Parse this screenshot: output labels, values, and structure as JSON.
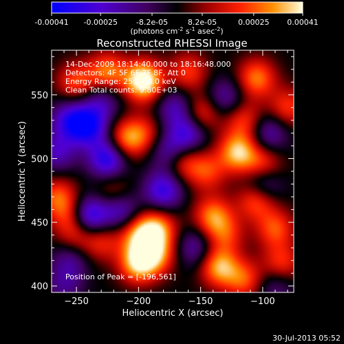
{
  "colorbar": {
    "tick_labels": [
      "-0.00041",
      "-0.00025",
      "-8.2e-05",
      "8.2e-05",
      "0.00025",
      "0.00041"
    ],
    "tick_values": [
      -0.00041,
      -0.00025,
      -8.2e-05,
      8.2e-05,
      0.00025,
      0.00041
    ],
    "range": [
      -0.00041,
      0.00041
    ],
    "unit_main": "(photons cm",
    "unit_exp1": "-2",
    "unit_mid": " s",
    "unit_exp2": "-1",
    "unit_mid2": " asec",
    "unit_exp3": "-2",
    "unit_end": ")"
  },
  "plot": {
    "title": "Reconstructed RHESSI Image",
    "annotation_lines": [
      "14-Dec-2009 18:14:40.000 to 18:16:48.000",
      "Detectors: 4F 5F 6F 7F 8F, Att 0",
      "Energy Range: 25.0-50.0 keV",
      "Clean     Total counts: 9.80E+03"
    ],
    "peak_label": "Position of Peak = [-196,561]",
    "footer": "30-Jul-2013 05:52"
  },
  "chart_data": {
    "type": "heatmap",
    "title": "Reconstructed RHESSI Image",
    "xlabel": "Heliocentric X (arcsec)",
    "ylabel": "Heliocentric Y (arcsec)",
    "xlim": [
      -270,
      -75
    ],
    "ylim": [
      395,
      585
    ],
    "x_ticks": [
      -250,
      -200,
      -150,
      -100
    ],
    "y_ticks": [
      400,
      450,
      500,
      550
    ],
    "x_tick_labels": [
      "−250",
      "−200",
      "−150",
      "−100"
    ],
    "y_tick_labels": [
      "400",
      "450",
      "500",
      "550"
    ],
    "peak_position": [
      -196,
      561
    ],
    "colormap": [
      "#0000ff",
      "#5a00b4",
      "#400060",
      "#000000",
      "#a00000",
      "#ff2000",
      "#ff9000",
      "#ffffa0"
    ],
    "value_range": [
      -0.00041,
      0.00041
    ],
    "sources": [
      {
        "x": -196,
        "y": 561,
        "v": 1.0
      },
      {
        "x": -225,
        "y": 568,
        "v": 0.6
      },
      {
        "x": -250,
        "y": 560,
        "v": 0.5
      },
      {
        "x": -160,
        "y": 568,
        "v": 0.45
      },
      {
        "x": -105,
        "y": 563,
        "v": 0.6
      },
      {
        "x": -80,
        "y": 540,
        "v": 0.45
      },
      {
        "x": -150,
        "y": 535,
        "v": 0.5
      },
      {
        "x": -115,
        "y": 530,
        "v": 0.45
      },
      {
        "x": -210,
        "y": 515,
        "v": 0.6
      },
      {
        "x": -195,
        "y": 520,
        "v": 0.35
      },
      {
        "x": -120,
        "y": 505,
        "v": 0.75
      },
      {
        "x": -100,
        "y": 495,
        "v": 0.5
      },
      {
        "x": -165,
        "y": 498,
        "v": 0.5
      },
      {
        "x": -145,
        "y": 490,
        "v": 0.45
      },
      {
        "x": -265,
        "y": 470,
        "v": 0.5
      },
      {
        "x": -255,
        "y": 455,
        "v": 0.4
      },
      {
        "x": -220,
        "y": 473,
        "v": 0.35
      },
      {
        "x": -105,
        "y": 468,
        "v": 0.6
      },
      {
        "x": -140,
        "y": 455,
        "v": 0.6
      },
      {
        "x": -90,
        "y": 445,
        "v": 0.5
      },
      {
        "x": -185,
        "y": 445,
        "v": 0.65
      },
      {
        "x": -200,
        "y": 440,
        "v": 0.6
      },
      {
        "x": -130,
        "y": 440,
        "v": 0.4
      },
      {
        "x": -230,
        "y": 435,
        "v": 0.4
      },
      {
        "x": -200,
        "y": 418,
        "v": 0.8
      },
      {
        "x": -185,
        "y": 425,
        "v": 0.55
      },
      {
        "x": -135,
        "y": 415,
        "v": 0.7
      },
      {
        "x": -115,
        "y": 405,
        "v": 0.5
      },
      {
        "x": -85,
        "y": 418,
        "v": 0.45
      },
      {
        "x": -250,
        "y": 440,
        "v": 0.35
      },
      {
        "x": -240,
        "y": 525,
        "v": -0.7
      },
      {
        "x": -255,
        "y": 530,
        "v": -0.6
      },
      {
        "x": -225,
        "y": 500,
        "v": -0.75
      },
      {
        "x": -240,
        "y": 455,
        "v": -0.8
      },
      {
        "x": -215,
        "y": 460,
        "v": -0.55
      },
      {
        "x": -180,
        "y": 475,
        "v": -0.65
      },
      {
        "x": -160,
        "y": 520,
        "v": -0.6
      },
      {
        "x": -175,
        "y": 505,
        "v": -0.5
      },
      {
        "x": -100,
        "y": 480,
        "v": -0.55
      },
      {
        "x": -95,
        "y": 520,
        "v": -0.45
      },
      {
        "x": -265,
        "y": 505,
        "v": -0.45
      },
      {
        "x": -255,
        "y": 420,
        "v": -0.35
      },
      {
        "x": -155,
        "y": 430,
        "v": -0.4
      },
      {
        "x": -230,
        "y": 545,
        "v": -0.4
      },
      {
        "x": -130,
        "y": 548,
        "v": -0.4
      },
      {
        "x": -170,
        "y": 540,
        "v": -0.45
      },
      {
        "x": -90,
        "y": 400,
        "v": -0.3
      },
      {
        "x": -260,
        "y": 400,
        "v": -0.3
      }
    ]
  }
}
